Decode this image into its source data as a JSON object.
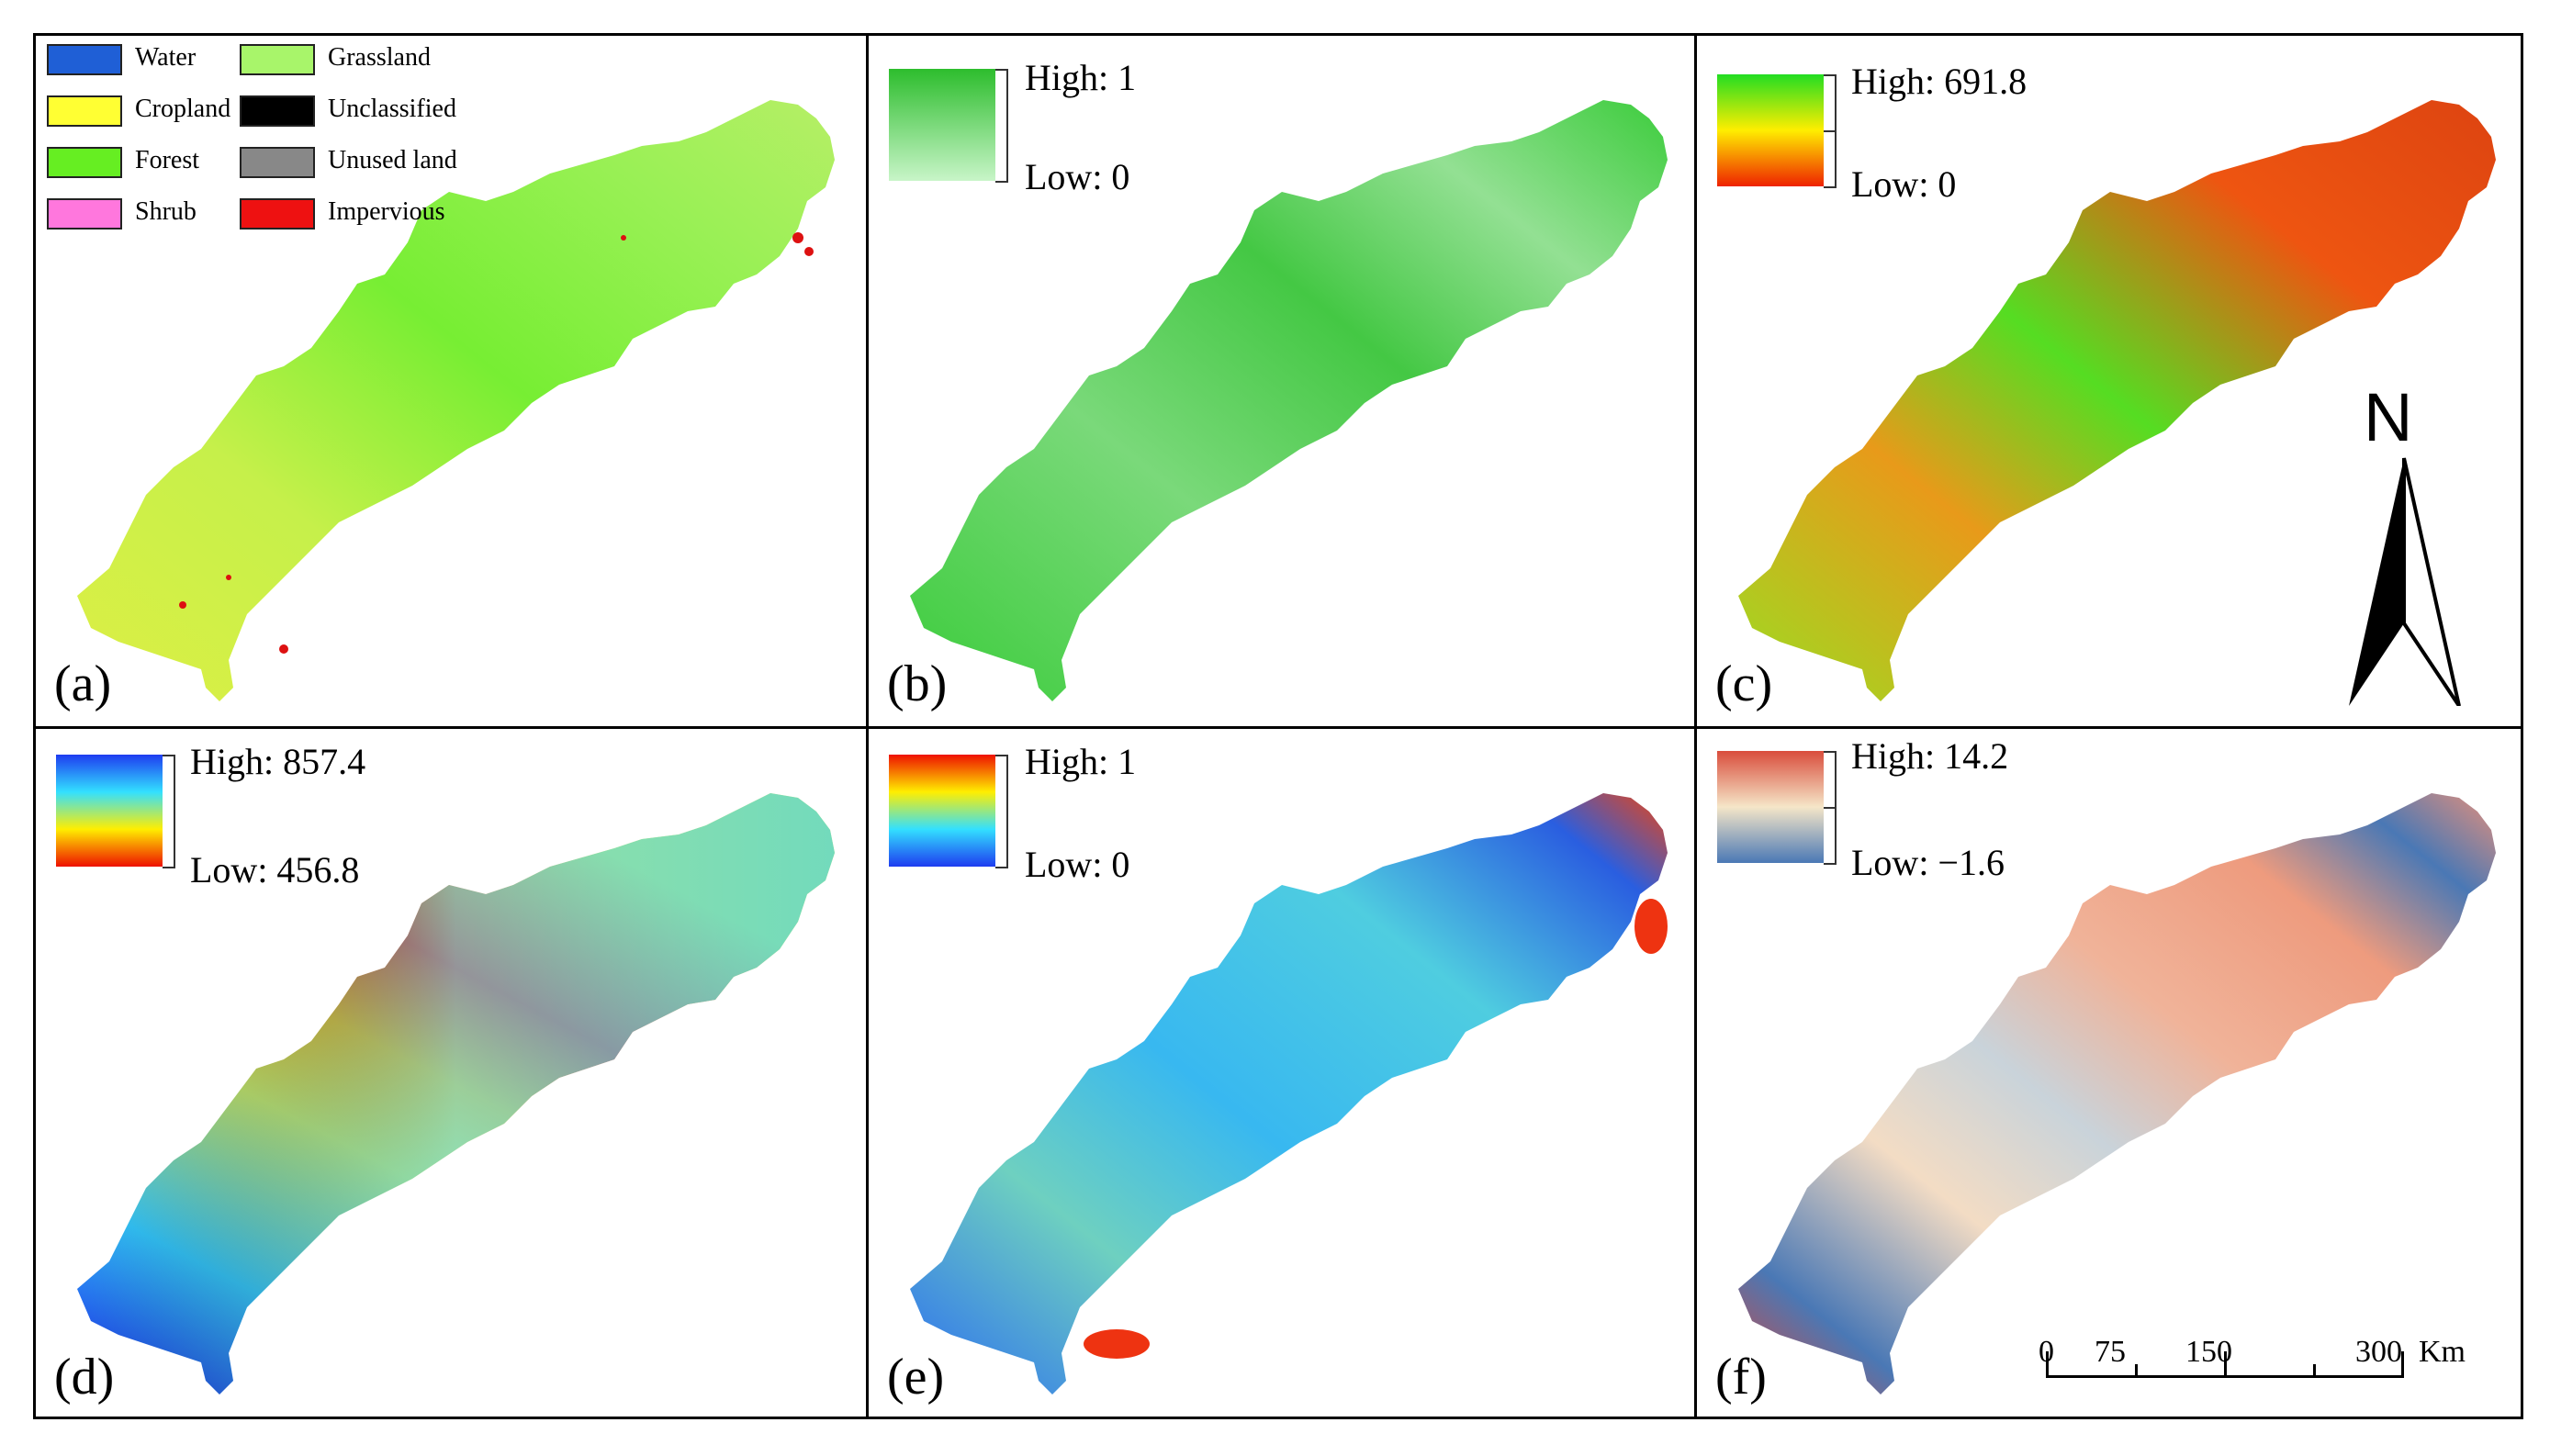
{
  "colors": {
    "water": "#1f5fd6",
    "cropland": "#ffff33",
    "forest": "#66ee22",
    "shrub": "#ff77dd",
    "grassland": "#a8f56a",
    "unclassified": "#000000",
    "unused_land": "#888888",
    "impervious": "#ee1111"
  },
  "panels": [
    {
      "id": "a",
      "label": "(a)",
      "type": "landcover",
      "legend": [
        {
          "name": "Water",
          "color_key": "water"
        },
        {
          "name": "Cropland",
          "color_key": "cropland"
        },
        {
          "name": "Forest",
          "color_key": "forest"
        },
        {
          "name": "Shrub",
          "color_key": "shrub"
        },
        {
          "name": "Grassland",
          "color_key": "grassland"
        },
        {
          "name": "Unclassified",
          "color_key": "unclassified"
        },
        {
          "name": "Unused land",
          "color_key": "unused_land"
        },
        {
          "name": "Impervious",
          "color_key": "impervious"
        }
      ]
    },
    {
      "id": "b",
      "label": "(b)",
      "type": "ramp",
      "high": "High: 1",
      "low": "Low: 0",
      "ramp_colors": [
        "#2dbd2d",
        "#c8f5c8"
      ]
    },
    {
      "id": "c",
      "label": "(c)",
      "type": "ramp",
      "high": "High: 691.8",
      "low": "Low: 0",
      "ramp_colors": [
        "#22dd22",
        "#ffee00",
        "#ee2200"
      ]
    },
    {
      "id": "d",
      "label": "(d)",
      "type": "ramp",
      "high": "High: 857.4",
      "low": "Low: 456.8",
      "ramp_colors": [
        "#1e3cf0",
        "#33e0ff",
        "#ffee00",
        "#ee1100"
      ]
    },
    {
      "id": "e",
      "label": "(e)",
      "type": "ramp",
      "high": "High: 1",
      "low": "Low: 0",
      "ramp_colors": [
        "#ee1100",
        "#ffee00",
        "#33e0ff",
        "#1e3cf0"
      ]
    },
    {
      "id": "f",
      "label": "(f)",
      "type": "ramp",
      "high": "High: 14.2",
      "low": "Low: −1.6",
      "ramp_colors": [
        "#d94d3c",
        "#f5e6c8",
        "#4a78b5"
      ]
    }
  ],
  "north_arrow": {
    "letter": "N"
  },
  "scale_bar": {
    "ticks": [
      "0",
      "75",
      "150",
      "300"
    ],
    "unit": "Km"
  }
}
